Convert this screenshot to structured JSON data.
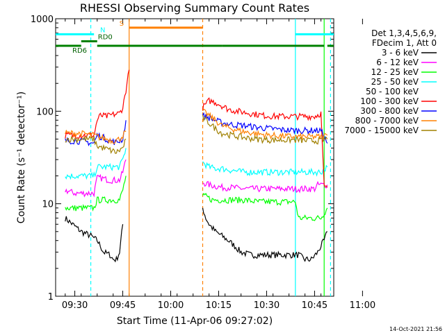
{
  "chart_data": {
    "type": "line",
    "title": "RHESSI Observing Summary Count Rates",
    "xlabel": "Start Time (11-Apr-06 09:27:02)",
    "ylabel": "Count Rate (s⁻¹ detector⁻¹)",
    "x_ticks": [
      "09:30",
      "09:45",
      "10:00",
      "10:15",
      "10:30",
      "10:45",
      "11:00"
    ],
    "x_range_minutes": [
      -3,
      84
    ],
    "y_scale": "log",
    "y_ticks": [
      "1",
      "10",
      "100",
      "1000"
    ],
    "ylim": [
      1,
      1000
    ],
    "legend_title": [
      "Det 1,3,4,5,6,9,",
      "FDecim 1, Att 0"
    ],
    "legend_position": "right",
    "series": [
      {
        "name": "3 - 6 keV",
        "color": "#000000",
        "segments": [
          {
            "x": [
              0,
              5,
              8,
              10,
              11,
              12,
              14,
              15,
              16,
              17,
              18
            ],
            "y": [
              7,
              5,
              4.5,
              4,
              3.5,
              3,
              2.8,
              2.5,
              2.5,
              3,
              6
            ]
          },
          {
            "x": [
              43,
              44,
              45,
              47,
              49,
              51,
              53,
              55,
              58,
              62,
              66,
              70,
              73,
              75,
              77,
              79,
              80,
              81,
              82
            ],
            "y": [
              9,
              7,
              6,
              5,
              4.5,
              4,
              3.5,
              3,
              2.8,
              2.8,
              2.8,
              2.8,
              2.8,
              2.5,
              2.5,
              3,
              3.5,
              4,
              5
            ]
          }
        ]
      },
      {
        "name": "6 - 12 keV",
        "color": "#ff00ff",
        "segments": [
          {
            "x": [
              0,
              3,
              6,
              9,
              10,
              11,
              14,
              17,
              18,
              19
            ],
            "y": [
              14,
              13,
              13,
              13,
              19,
              19,
              18,
              18,
              22,
              30
            ]
          },
          {
            "x": [
              43,
              45,
              47,
              49,
              52,
              56,
              60,
              64,
              68,
              72,
              76,
              78,
              79,
              80,
              82
            ],
            "y": [
              17,
              16,
              15.5,
              15,
              15,
              14.5,
              14.5,
              14.5,
              14.5,
              14.5,
              14.5,
              14.5,
              16,
              16,
              16
            ]
          }
        ]
      },
      {
        "name": "12 - 25 keV",
        "color": "#00ff00",
        "segments": [
          {
            "x": [
              0,
              2,
              4,
              6,
              9,
              10,
              11,
              13,
              15,
              17,
              18,
              19
            ],
            "y": [
              9,
              9,
              9,
              9,
              9,
              11,
              11,
              11,
              11,
              11,
              14,
              20
            ]
          },
          {
            "x": [
              43,
              44,
              46,
              48,
              52,
              56,
              60,
              64,
              68,
              72,
              73,
              74,
              76,
              78,
              80,
              82
            ],
            "y": [
              12,
              12,
              11,
              11,
              11,
              11,
              10.5,
              10.5,
              10.5,
              10.5,
              7,
              7,
              7,
              7,
              7,
              9
            ]
          }
        ]
      },
      {
        "name": "25 - 50 keV",
        "color": "#00ffff",
        "segments": [
          {
            "x": [
              0,
              3,
              6,
              9,
              10,
              12,
              15,
              17,
              18,
              19
            ],
            "y": [
              20,
              20,
              20,
              20,
              25,
              25,
              25,
              25,
              30,
              40
            ]
          },
          {
            "x": [
              43,
              45,
              47,
              49,
              52,
              56,
              60,
              65,
              70,
              75,
              80,
              82
            ],
            "y": [
              28,
              25,
              24,
              24,
              23,
              22,
              22,
              22,
              22,
              22,
              22,
              25
            ]
          }
        ]
      },
      {
        "name": "50 - 100 keV",
        "color": "#ffffff",
        "segments": []
      },
      {
        "name": "100 - 300 keV",
        "color": "#ff0000",
        "segments": [
          {
            "x": [
              0,
              3,
              6,
              9,
              10,
              11,
              13,
              15,
              17,
              18,
              19,
              20
            ],
            "y": [
              55,
              55,
              55,
              55,
              80,
              90,
              88,
              92,
              95,
              110,
              170,
              280
            ]
          },
          {
            "x": [
              43,
              45,
              47,
              49,
              51,
              54,
              58,
              62,
              66,
              70,
              74,
              78,
              80,
              81,
              82
            ],
            "y": [
              110,
              130,
              125,
              115,
              105,
              100,
              95,
              90,
              88,
              88,
              88,
              88,
              95,
              15,
              15
            ]
          }
        ]
      },
      {
        "name": "300 - 800 keV",
        "color": "#0000ff",
        "segments": [
          {
            "x": [
              0,
              3,
              6,
              9,
              10,
              12,
              14,
              16,
              18,
              19
            ],
            "y": [
              48,
              48,
              47,
              45,
              55,
              52,
              48,
              46,
              50,
              80
            ]
          },
          {
            "x": [
              43,
              45,
              47,
              49,
              52,
              56,
              60,
              64,
              68,
              72,
              76,
              80,
              82
            ],
            "y": [
              90,
              85,
              80,
              75,
              72,
              70,
              67,
              65,
              63,
              62,
              62,
              62,
              45
            ]
          }
        ]
      },
      {
        "name": "800 - 7000 keV",
        "color": "#ff8000",
        "segments": [
          {
            "x": [
              0,
              3,
              6,
              9,
              11,
              13,
              15,
              17,
              19
            ],
            "y": [
              58,
              58,
              57,
              55,
              52,
              50,
              48,
              50,
              60
            ]
          },
          {
            "x": [
              43,
              45,
              47,
              49,
              52,
              56,
              60,
              64,
              68,
              72,
              76,
              80,
              82
            ],
            "y": [
              100,
              90,
              80,
              70,
              65,
              60,
              57,
              55,
              54,
              53,
              53,
              53,
              55
            ]
          }
        ]
      },
      {
        "name": "7000 - 15000 keV",
        "color": "#a08000",
        "segments": [
          {
            "x": [
              0,
              3,
              6,
              9,
              10,
              12,
              14,
              16,
              18,
              19
            ],
            "y": [
              50,
              50,
              50,
              50,
              42,
              40,
              38,
              36,
              40,
              50
            ]
          },
          {
            "x": [
              43,
              45,
              47,
              49,
              52,
              56,
              60,
              64,
              68,
              72,
              76,
              80,
              82
            ],
            "y": [
              85,
              75,
              65,
              58,
              55,
              52,
              50,
              49,
              49,
              49,
              48,
              48,
              50
            ]
          }
        ]
      }
    ],
    "attenuator_flags": [
      {
        "label": "N",
        "color": "#00ffff",
        "y_level": 680,
        "spans": [
          [
            -3,
            9
          ],
          [
            72,
            84
          ]
        ]
      },
      {
        "label": "S",
        "color": "#ff8000",
        "y_level": 800,
        "spans": [
          [
            20,
            43
          ]
        ]
      },
      {
        "label": "RD0",
        "color": "#008000",
        "y_level": 570,
        "spans": [
          [
            5,
            10
          ]
        ]
      },
      {
        "label": "RD6",
        "color": "#008000",
        "y_level": 510,
        "spans": [
          [
            -3,
            5
          ],
          [
            10,
            43
          ],
          [
            43,
            49
          ],
          [
            49,
            81
          ],
          [
            82,
            84
          ]
        ]
      }
    ],
    "vertical_markers": [
      {
        "x": 8,
        "color": "#00ffff",
        "style": "dashed"
      },
      {
        "x": 20,
        "color": "#ff8000",
        "style": "solid"
      },
      {
        "x": 43,
        "color": "#ff8000",
        "style": "dashed"
      },
      {
        "x": 72,
        "color": "#00ffff",
        "style": "solid"
      },
      {
        "x": 83,
        "color": "#00ffff",
        "style": "dashed"
      },
      {
        "x": 81,
        "color": "#00ff00",
        "style": "solid"
      }
    ],
    "footer_date": "14-Oct-2021 21:56"
  }
}
